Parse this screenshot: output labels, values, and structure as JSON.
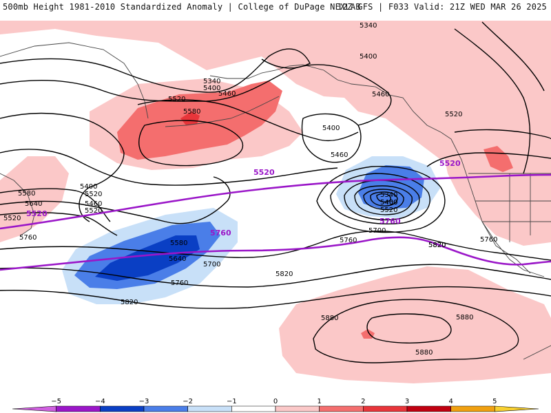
{
  "header": {
    "left": "500mb Height 1981-2010 Standardized Anomaly | College of DuPage NEXLAB",
    "right": "12Z GFS | F033 Valid: 21Z WED MAR 26 2025"
  },
  "colors": {
    "anom_pos_1": "#fbc8c8",
    "anom_pos_2": "#f46e6e",
    "anom_pos_3": "#e8353a",
    "anom_neg_1": "#c8e0f8",
    "anom_neg_2": "#4a7ee8",
    "anom_neg_3": "#0a3fc4",
    "contour": "#000000",
    "highlight_contour": "#9a16c8"
  },
  "contour_labels": [
    {
      "text": "5340"
    },
    {
      "text": "5400"
    },
    {
      "text": "5460"
    },
    {
      "text": "5520"
    },
    {
      "text": "5340"
    },
    {
      "text": "5400"
    },
    {
      "text": "5460"
    },
    {
      "text": "5520"
    },
    {
      "text": "5580"
    },
    {
      "text": "5400"
    },
    {
      "text": "5460"
    },
    {
      "text": "5520"
    },
    {
      "text": "5400"
    },
    {
      "text": "5460"
    },
    {
      "text": "5520"
    },
    {
      "text": "5580"
    },
    {
      "text": "5640"
    },
    {
      "text": "5520"
    },
    {
      "text": "5760"
    },
    {
      "text": "5580"
    },
    {
      "text": "5640"
    },
    {
      "text": "5700"
    },
    {
      "text": "5760"
    },
    {
      "text": "5820"
    },
    {
      "text": "5820"
    },
    {
      "text": "5880"
    },
    {
      "text": "5880"
    },
    {
      "text": "5880"
    },
    {
      "text": "5340"
    },
    {
      "text": "5400"
    },
    {
      "text": "5460"
    },
    {
      "text": "5520"
    },
    {
      "text": "5700"
    },
    {
      "text": "5760"
    },
    {
      "text": "5820"
    },
    {
      "text": "5760"
    },
    {
      "text": "5820"
    }
  ],
  "highlight_labels": [
    {
      "text": "5520"
    },
    {
      "text": "5520"
    },
    {
      "text": "5520"
    },
    {
      "text": "5760"
    },
    {
      "text": "5760"
    }
  ],
  "legend": {
    "ticks": [
      "−5",
      "−4",
      "−3",
      "−2",
      "−1",
      "0",
      "1",
      "2",
      "3",
      "4",
      "5"
    ],
    "colors": [
      "#d060e0",
      "#9a16c8",
      "#0a3fc4",
      "#4a7ee8",
      "#c8e0f8",
      "#ffffff",
      "#fbc8c8",
      "#f46e6e",
      "#e8353a",
      "#c00010",
      "#f0a010",
      "#f8d030"
    ]
  }
}
